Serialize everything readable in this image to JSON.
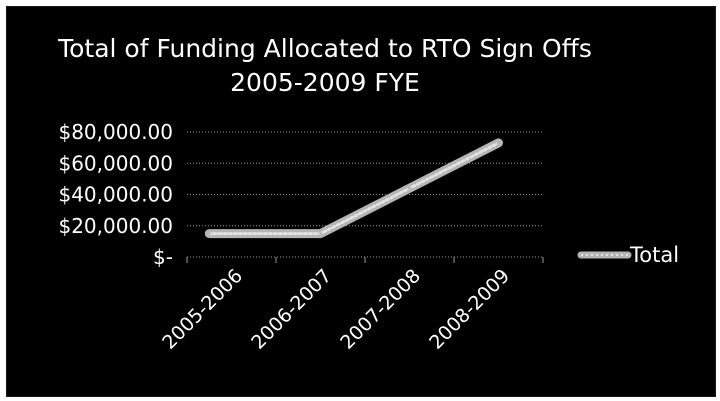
{
  "chart_data": {
    "type": "line",
    "title": "Total of Funding Allocated to RTO Sign Offs",
    "subtitle": "2005-2009 FYE",
    "categories": [
      "2005-2006",
      "2006-2007",
      "2007-2008",
      "2008-2009"
    ],
    "series": [
      {
        "name": "Total",
        "values": [
          15000,
          15000,
          44000,
          73000
        ]
      }
    ],
    "y_ticks": [
      "$-",
      "$20,000.00",
      "$40,000.00",
      "$60,000.00",
      "$80,000.00"
    ],
    "ylim": [
      0,
      80000
    ],
    "grid": true,
    "legend": "right",
    "colors": {
      "background": "#000000",
      "text": "#ffffff",
      "line": "#b5b5b5",
      "grid": "#9a9a9a"
    }
  }
}
